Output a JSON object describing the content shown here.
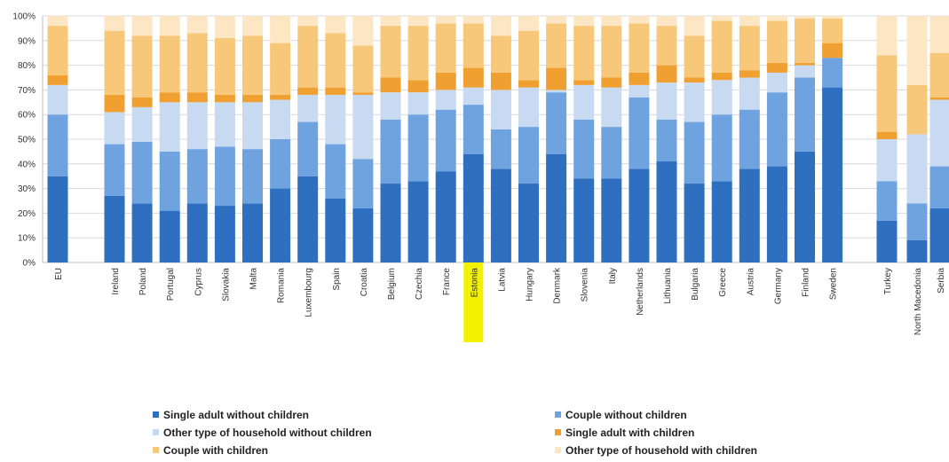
{
  "chart_data": {
    "type": "bar",
    "stacked": true,
    "normalized_percent": true,
    "categories": [
      "EU",
      "Ireland",
      "Poland",
      "Portugal",
      "Cyprus",
      "Slovakia",
      "Malta",
      "Romania",
      "Luxembourg",
      "Spain",
      "Croatia",
      "Belgium",
      "Czechia",
      "France",
      "Estonia",
      "Latvia",
      "Hungary",
      "Denmark",
      "Slovenia",
      "Italy",
      "Netherlands",
      "Lithuania",
      "Bulgaria",
      "Greece",
      "Austria",
      "Germany",
      "Finland",
      "Sweden",
      "Turkey",
      "North Macedonia",
      "Serbia"
    ],
    "highlighted_category": "Estonia",
    "highlight_color": "#f2f200",
    "ylim": [
      0,
      100
    ],
    "yticks": [
      "0%",
      "10%",
      "20%",
      "30%",
      "40%",
      "50%",
      "60%",
      "70%",
      "80%",
      "90%",
      "100%"
    ],
    "grid": true,
    "legend_position": "bottom",
    "series": [
      {
        "name": "Single adult without children",
        "color": "#2f6fbf",
        "values": [
          35,
          27,
          24,
          21,
          24,
          23,
          24,
          30,
          35,
          26,
          22,
          32,
          33,
          37,
          44,
          38,
          32,
          44,
          34,
          34,
          38,
          41,
          32,
          33,
          38,
          39,
          45,
          71,
          17,
          9,
          22
        ]
      },
      {
        "name": "Couple without children",
        "color": "#6fa3e0",
        "values": [
          25,
          21,
          25,
          24,
          22,
          24,
          22,
          20,
          22,
          22,
          20,
          26,
          27,
          25,
          20,
          16,
          23,
          25,
          24,
          21,
          29,
          17,
          25,
          27,
          24,
          30,
          30,
          12,
          16,
          15,
          17
        ]
      },
      {
        "name": "Other type of household without children",
        "color": "#c8daf2",
        "values": [
          12,
          13,
          14,
          20,
          19,
          18,
          19,
          16,
          11,
          20,
          26,
          11,
          9,
          8,
          7,
          16,
          16,
          1,
          14,
          16,
          5,
          15,
          16,
          14,
          13,
          8,
          5,
          0,
          17,
          28,
          27
        ]
      },
      {
        "name": "Single adult with children",
        "color": "#f0a030",
        "values": [
          4,
          7,
          4,
          4,
          4,
          3,
          3,
          2,
          3,
          3,
          1,
          6,
          5,
          7,
          8,
          7,
          3,
          9,
          2,
          4,
          5,
          7,
          2,
          3,
          3,
          4,
          1,
          6,
          3,
          0,
          1
        ]
      },
      {
        "name": "Couple with children",
        "color": "#f7c87a",
        "values": [
          20,
          26,
          25,
          23,
          24,
          23,
          24,
          21,
          25,
          22,
          19,
          21,
          22,
          20,
          18,
          15,
          20,
          18,
          22,
          21,
          20,
          16,
          17,
          21,
          18,
          17,
          18,
          10,
          31,
          20,
          18
        ]
      },
      {
        "name": "Other type of household with children",
        "color": "#fce6c4",
        "values": [
          4,
          6,
          8,
          8,
          7,
          9,
          8,
          11,
          4,
          7,
          12,
          4,
          4,
          3,
          3,
          8,
          6,
          3,
          4,
          4,
          3,
          4,
          8,
          2,
          4,
          2,
          1,
          1,
          16,
          28,
          15
        ]
      }
    ]
  }
}
